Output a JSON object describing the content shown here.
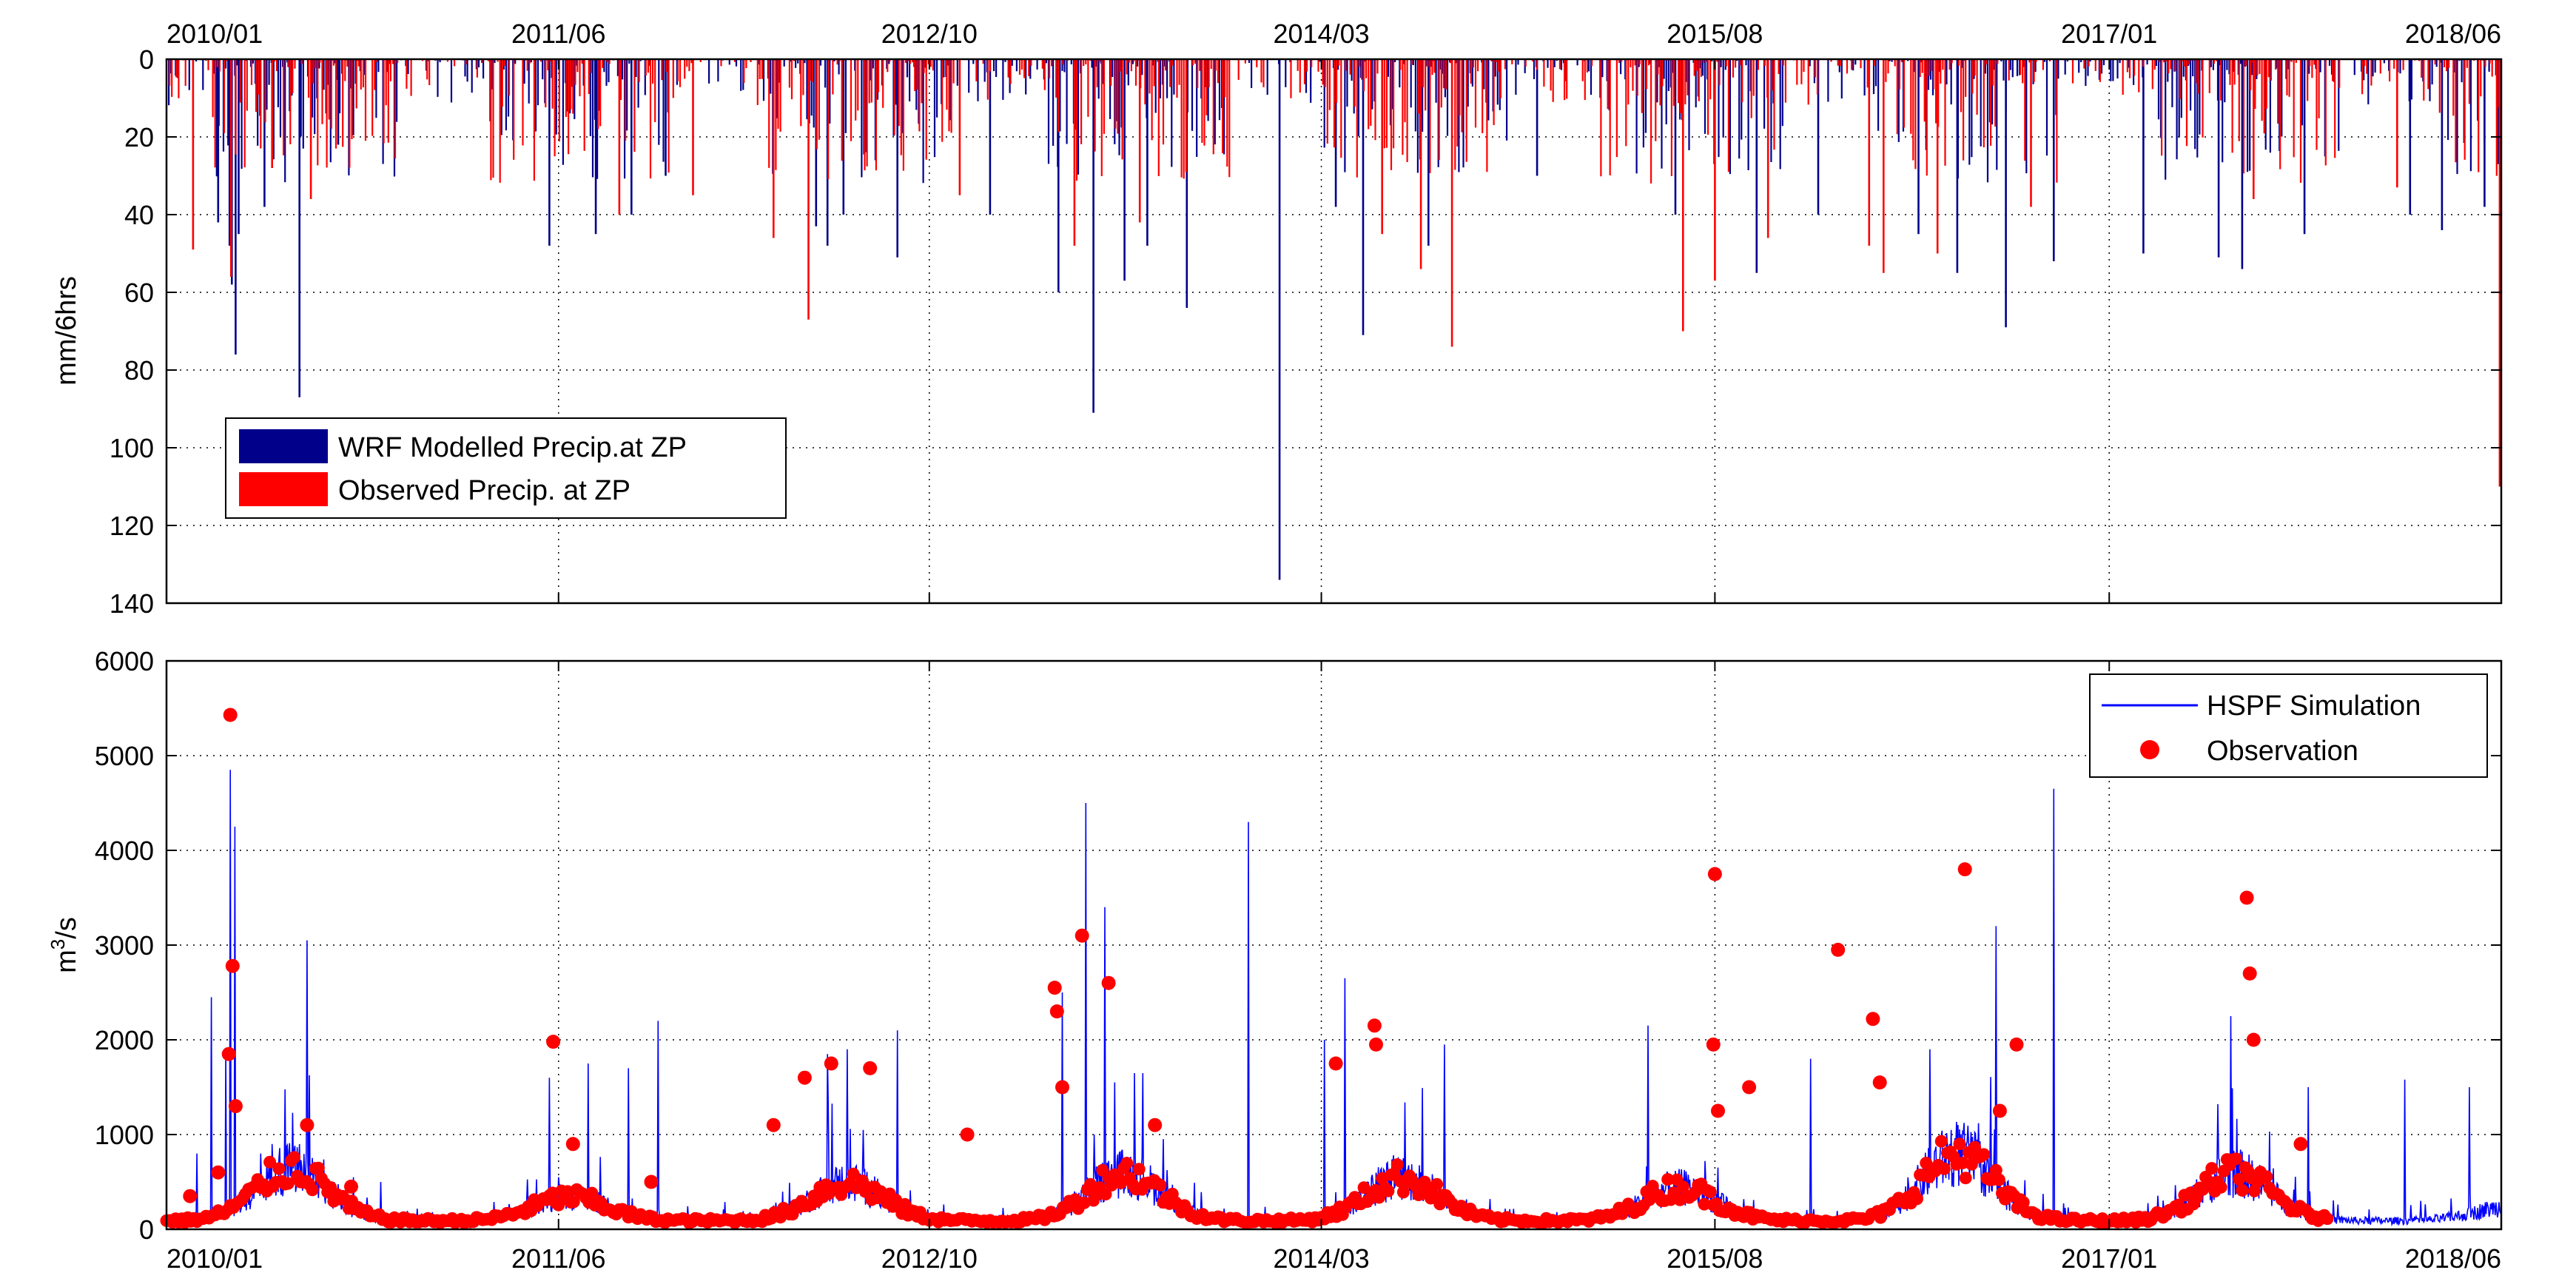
{
  "chart_data": [
    {
      "type": "bar",
      "panel": "top",
      "x_axis_location": "top",
      "x_tick_labels": [
        "2010/01",
        "2011/06",
        "2012/10",
        "2014/03",
        "2015/08",
        "2017/01",
        "2018/06"
      ],
      "x_tick_dates": [
        "2010-01-01",
        "2011-06-01",
        "2012-10-01",
        "2014-03-01",
        "2015-08-01",
        "2017-01-01",
        "2018-06-01"
      ],
      "xlim": [
        "2010-01-01",
        "2018-06-01"
      ],
      "ylabel": "mm/6hrs",
      "ylim": [
        0,
        140
      ],
      "y_reversed": true,
      "y_ticks": [
        0,
        20,
        40,
        60,
        80,
        100,
        120,
        140
      ],
      "grid": true,
      "legend_position": "lower-left",
      "series": [
        {
          "name": "WRF Modelled Precip.at ZP",
          "color": "#00008B",
          "points": [
            [
              "2010-03-25",
              48
            ],
            [
              "2010-03-28",
              58
            ],
            [
              "2010-04-02",
              76
            ],
            [
              "2010-04-06",
              45
            ],
            [
              "2010-06-25",
              87
            ],
            [
              "2010-03-10",
              42
            ],
            [
              "2010-05-10",
              38
            ],
            [
              "2010-08-15",
              22
            ],
            [
              "2011-05-20",
              48
            ],
            [
              "2011-07-20",
              45
            ],
            [
              "2011-09-05",
              40
            ],
            [
              "2011-10-20",
              30
            ],
            [
              "2012-05-05",
              43
            ],
            [
              "2012-05-20",
              48
            ],
            [
              "2012-06-10",
              40
            ],
            [
              "2012-08-20",
              51
            ],
            [
              "2012-12-20",
              40
            ],
            [
              "2013-03-20",
              60
            ],
            [
              "2013-05-05",
              91
            ],
            [
              "2013-06-15",
              57
            ],
            [
              "2013-07-15",
              48
            ],
            [
              "2013-09-05",
              64
            ],
            [
              "2014-01-05",
              134
            ],
            [
              "2014-04-25",
              71
            ],
            [
              "2014-07-20",
              48
            ],
            [
              "2014-03-20",
              38
            ],
            [
              "2014-12-10",
              30
            ],
            [
              "2015-06-10",
              40
            ],
            [
              "2015-09-25",
              55
            ],
            [
              "2015-12-15",
              40
            ],
            [
              "2016-04-25",
              45
            ],
            [
              "2016-06-15",
              55
            ],
            [
              "2016-08-18",
              69
            ],
            [
              "2016-10-20",
              52
            ],
            [
              "2017-02-15",
              50
            ],
            [
              "2017-05-25",
              51
            ],
            [
              "2017-06-25",
              54
            ],
            [
              "2017-09-15",
              45
            ],
            [
              "2018-02-01",
              40
            ],
            [
              "2018-03-15",
              44
            ],
            [
              "2018-05-10",
              38
            ],
            [
              "2018-05-28",
              27
            ]
          ]
        },
        {
          "name": "Observed Precip. at ZP",
          "color": "#FF0000",
          "points": [
            [
              "2010-02-05",
              49
            ],
            [
              "2010-03-27",
              56
            ],
            [
              "2010-07-10",
              36
            ],
            [
              "2010-05-20",
              28
            ],
            [
              "2011-08-20",
              40
            ],
            [
              "2011-11-25",
              35
            ],
            [
              "2012-03-10",
              46
            ],
            [
              "2012-04-25",
              67
            ],
            [
              "2012-11-10",
              35
            ],
            [
              "2013-04-10",
              48
            ],
            [
              "2013-07-05",
              42
            ],
            [
              "2014-07-10",
              54
            ],
            [
              "2014-08-20",
              74
            ],
            [
              "2014-05-20",
              45
            ],
            [
              "2015-06-20",
              70
            ],
            [
              "2015-08-01",
              57
            ],
            [
              "2015-10-10",
              46
            ],
            [
              "2016-03-10",
              55
            ],
            [
              "2016-02-20",
              48
            ],
            [
              "2016-05-20",
              50
            ],
            [
              "2016-09-20",
              38
            ],
            [
              "2017-07-10",
              36
            ],
            [
              "2018-01-15",
              33
            ],
            [
              "2018-05-30",
              110
            ]
          ]
        }
      ]
    },
    {
      "type": "line",
      "panel": "bottom",
      "x_axis_location": "bottom",
      "x_tick_labels": [
        "2010/01",
        "2011/06",
        "2012/10",
        "2014/03",
        "2015/08",
        "2017/01",
        "2018/06"
      ],
      "x_tick_dates": [
        "2010-01-01",
        "2011-06-01",
        "2012-10-01",
        "2014-03-01",
        "2015-08-01",
        "2017-01-01",
        "2018-06-01"
      ],
      "xlim": [
        "2010-01-01",
        "2018-06-01"
      ],
      "ylabel_main": "m",
      "ylabel_sup": "3",
      "ylabel_tail": "/s",
      "ylim": [
        0,
        6000
      ],
      "y_ticks": [
        0,
        1000,
        2000,
        3000,
        4000,
        5000,
        6000
      ],
      "grid": true,
      "legend_position": "top-right",
      "series": [
        {
          "name": "HSPF Simulation",
          "style": "line",
          "color": "#0000FF",
          "peaks": [
            [
              "2010-02-10",
              800
            ],
            [
              "2010-03-01",
              2450
            ],
            [
              "2010-03-20",
              1900
            ],
            [
              "2010-03-26",
              4850
            ],
            [
              "2010-04-01",
              4250
            ],
            [
              "2010-05-20",
              900
            ],
            [
              "2010-07-05",
              3050
            ],
            [
              "2010-10-10",
              500
            ],
            [
              "2011-05-20",
              1600
            ],
            [
              "2011-07-10",
              1750
            ],
            [
              "2011-09-01",
              1700
            ],
            [
              "2011-10-10",
              2200
            ],
            [
              "2012-05-20",
              1850
            ],
            [
              "2012-06-15",
              1900
            ],
            [
              "2012-08-20",
              2100
            ],
            [
              "2013-03-25",
              2500
            ],
            [
              "2013-04-25",
              4500
            ],
            [
              "2013-05-20",
              3400
            ],
            [
              "2013-11-25",
              4300
            ],
            [
              "2014-03-05",
              2000
            ],
            [
              "2014-04-01",
              2650
            ],
            [
              "2014-08-10",
              1950
            ],
            [
              "2015-05-05",
              2150
            ],
            [
              "2015-12-05",
              1800
            ],
            [
              "2016-05-10",
              1900
            ],
            [
              "2016-08-05",
              3200
            ],
            [
              "2016-10-20",
              4650
            ],
            [
              "2017-06-10",
              2250
            ],
            [
              "2017-09-20",
              1500
            ],
            [
              "2018-01-25",
              1580
            ],
            [
              "2018-04-20",
              1500
            ]
          ]
        },
        {
          "name": "Observation",
          "style": "markers",
          "color": "#FF0000",
          "points": [
            [
              "2010-02-01",
              350
            ],
            [
              "2010-03-10",
              600
            ],
            [
              "2010-03-24",
              1850
            ],
            [
              "2010-03-26",
              5430
            ],
            [
              "2010-03-29",
              2780
            ],
            [
              "2010-04-02",
              1300
            ],
            [
              "2010-07-05",
              1100
            ],
            [
              "2010-09-01",
              450
            ],
            [
              "2011-05-25",
              1980
            ],
            [
              "2011-06-20",
              900
            ],
            [
              "2011-10-01",
              500
            ],
            [
              "2012-03-10",
              1100
            ],
            [
              "2012-04-20",
              1600
            ],
            [
              "2012-05-25",
              1750
            ],
            [
              "2012-07-15",
              1700
            ],
            [
              "2012-11-20",
              1000
            ],
            [
              "2013-03-15",
              2550
            ],
            [
              "2013-03-18",
              2300
            ],
            [
              "2013-03-25",
              1500
            ],
            [
              "2013-04-20",
              3100
            ],
            [
              "2013-05-25",
              2600
            ],
            [
              "2013-07-25",
              1100
            ],
            [
              "2014-03-20",
              1750
            ],
            [
              "2014-05-10",
              2150
            ],
            [
              "2014-05-12",
              1950
            ],
            [
              "2015-07-30",
              1950
            ],
            [
              "2015-08-01",
              3750
            ],
            [
              "2015-08-05",
              1250
            ],
            [
              "2015-09-15",
              1500
            ],
            [
              "2016-01-10",
              2950
            ],
            [
              "2016-02-25",
              2220
            ],
            [
              "2016-03-05",
              1550
            ],
            [
              "2016-06-25",
              3800
            ],
            [
              "2016-09-01",
              1950
            ],
            [
              "2016-08-10",
              1250
            ],
            [
              "2017-07-01",
              3500
            ],
            [
              "2017-07-05",
              2700
            ],
            [
              "2017-07-10",
              2000
            ],
            [
              "2017-09-10",
              900
            ]
          ]
        }
      ]
    }
  ]
}
